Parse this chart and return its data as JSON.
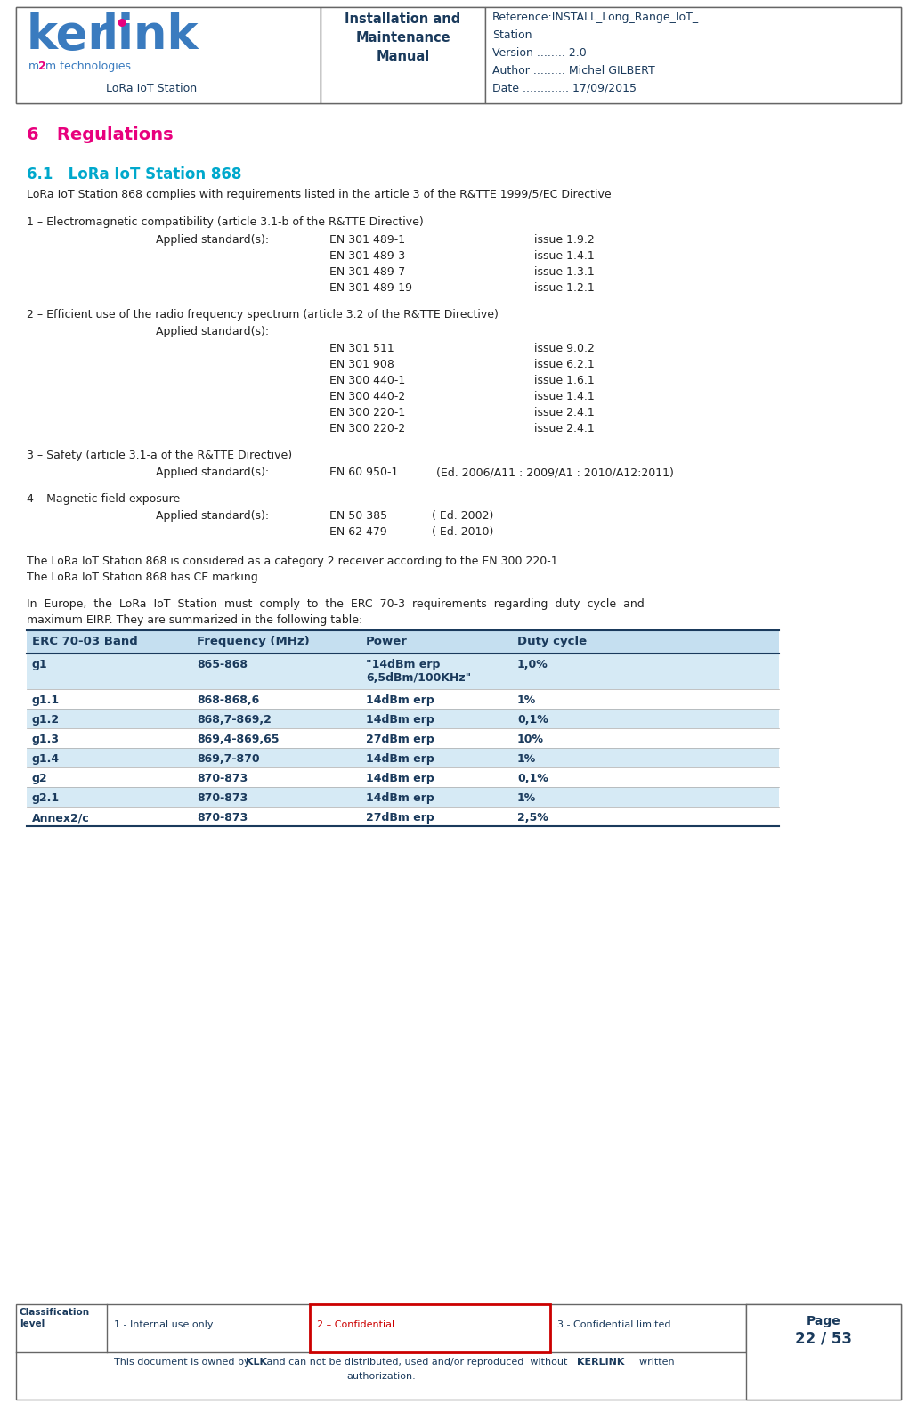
{
  "page_width": 10.3,
  "page_height": 15.77,
  "bg_color": "#ffffff",
  "header_right_lines": [
    "Reference:INSTALL_Long_Range_IoT_",
    "Station",
    "Version ........ 2.0",
    "Author ......... Michel GILBERT",
    "Date ............. 17/09/2015"
  ],
  "section_6_title": "6   Regulations",
  "section_6_color": "#e8007d",
  "section_61_title": "6.1   LoRa IoT Station 868",
  "section_61_color": "#00a8cc",
  "intro_text": "LoRa IoT Station 868 complies with requirements listed in the article 3 of the R&TTE 1999/5/EC Directive",
  "block1_title": "1 – Electromagnetic compatibility (article 3.1-b of the R&TTE Directive)",
  "block1_applied": "Applied standard(s):",
  "block1_standards": [
    [
      "EN 301 489-1",
      "issue 1.9.2"
    ],
    [
      "EN 301 489-3",
      "issue 1.4.1"
    ],
    [
      "EN 301 489-7",
      "issue 1.3.1"
    ],
    [
      "EN 301 489-19",
      "issue 1.2.1"
    ]
  ],
  "block2_title": "2 – Efficient use of the radio frequency spectrum (article 3.2 of the R&TTE Directive)",
  "block2_applied": "Applied standard(s):",
  "block2_standards": [
    [
      "EN 301 511",
      "issue 9.0.2"
    ],
    [
      "EN 301 908",
      "issue 6.2.1"
    ],
    [
      "EN 300 440-1",
      "issue 1.6.1"
    ],
    [
      "EN 300 440-2",
      "issue 1.4.1"
    ],
    [
      "EN 300 220-1",
      "issue 2.4.1"
    ],
    [
      "EN 300 220-2",
      "issue 2.4.1"
    ]
  ],
  "block3_title": "3 – Safety (article 3.1-a of the R&TTE Directive)",
  "block3_applied": "Applied standard(s):",
  "block3_std": "EN 60 950-1",
  "block3_iss": "(Ed. 2006/A11 : 2009/A1 : 2010/A12:2011)",
  "block4_title": "4 – Magnetic field exposure",
  "block4_applied": "Applied standard(s):",
  "block4_standards": [
    [
      "EN 50 385",
      "( Ed. 2002)"
    ],
    [
      "EN 62 479",
      "( Ed. 2010)"
    ]
  ],
  "para_receiver": "The LoRa IoT Station 868 is considered as a category 2 receiver according to the EN 300 220-1.",
  "para_ce": "The LoRa IoT Station 868 has CE marking.",
  "para_europe_1": "In  Europe,  the  LoRa  IoT  Station  must  comply  to  the  ERC  70-3  requirements  regarding  duty  cycle  and",
  "para_europe_2": "maximum EIRP. They are summarized in the following table:",
  "table_header": [
    "ERC 70-03 Band",
    "Frequency (MHz)",
    "Power",
    "Duty cycle"
  ],
  "table_header_color": "#1a3a5c",
  "table_header_bg": "#c5dff0",
  "table_rows": [
    [
      "g1",
      "865-868",
      "\"14dBm erp\n6,5dBm/100KHz\"",
      "1,0%"
    ],
    [
      "g1.1",
      "868-868,6",
      "14dBm erp",
      "1%"
    ],
    [
      "g1.2",
      "868,7-869,2",
      "14dBm erp",
      "0,1%"
    ],
    [
      "g1.3",
      "869,4-869,65",
      "27dBm erp",
      "10%"
    ],
    [
      "g1.4",
      "869,7-870",
      "14dBm erp",
      "1%"
    ],
    [
      "g2",
      "870-873",
      "14dBm erp",
      "0,1%"
    ],
    [
      "g2.1",
      "870-873",
      "14dBm erp",
      "1%"
    ],
    [
      "Annex2/c",
      "870-873",
      "27dBm erp",
      "2,5%"
    ]
  ],
  "table_row_colors": [
    "#d6eaf5",
    "#ffffff",
    "#d6eaf5",
    "#ffffff",
    "#d6eaf5",
    "#ffffff",
    "#d6eaf5",
    "#ffffff"
  ],
  "table_text_color": "#1a3a5c",
  "footer_classification": "Classification\nlevel",
  "footer_col1": "1 - Internal use only",
  "footer_col2": "2 – Confidential",
  "footer_col2_color": "#cc0000",
  "footer_col3": "3 - Confidential limited",
  "footer_doc_text1": "This document is owned by ",
  "footer_doc_klk": "KLK",
  "footer_doc_text2": " and can not be distributed, used and/or reproduced  without ",
  "footer_doc_kerlink": "KERLINK",
  "footer_doc_text3": "  written",
  "footer_doc_text4": "authorization.",
  "footer_page_line1": "Page",
  "footer_page_line2": "22 / 53",
  "dark_color": "#1a3a5c",
  "body_color": "#222222",
  "line_color": "#888888"
}
